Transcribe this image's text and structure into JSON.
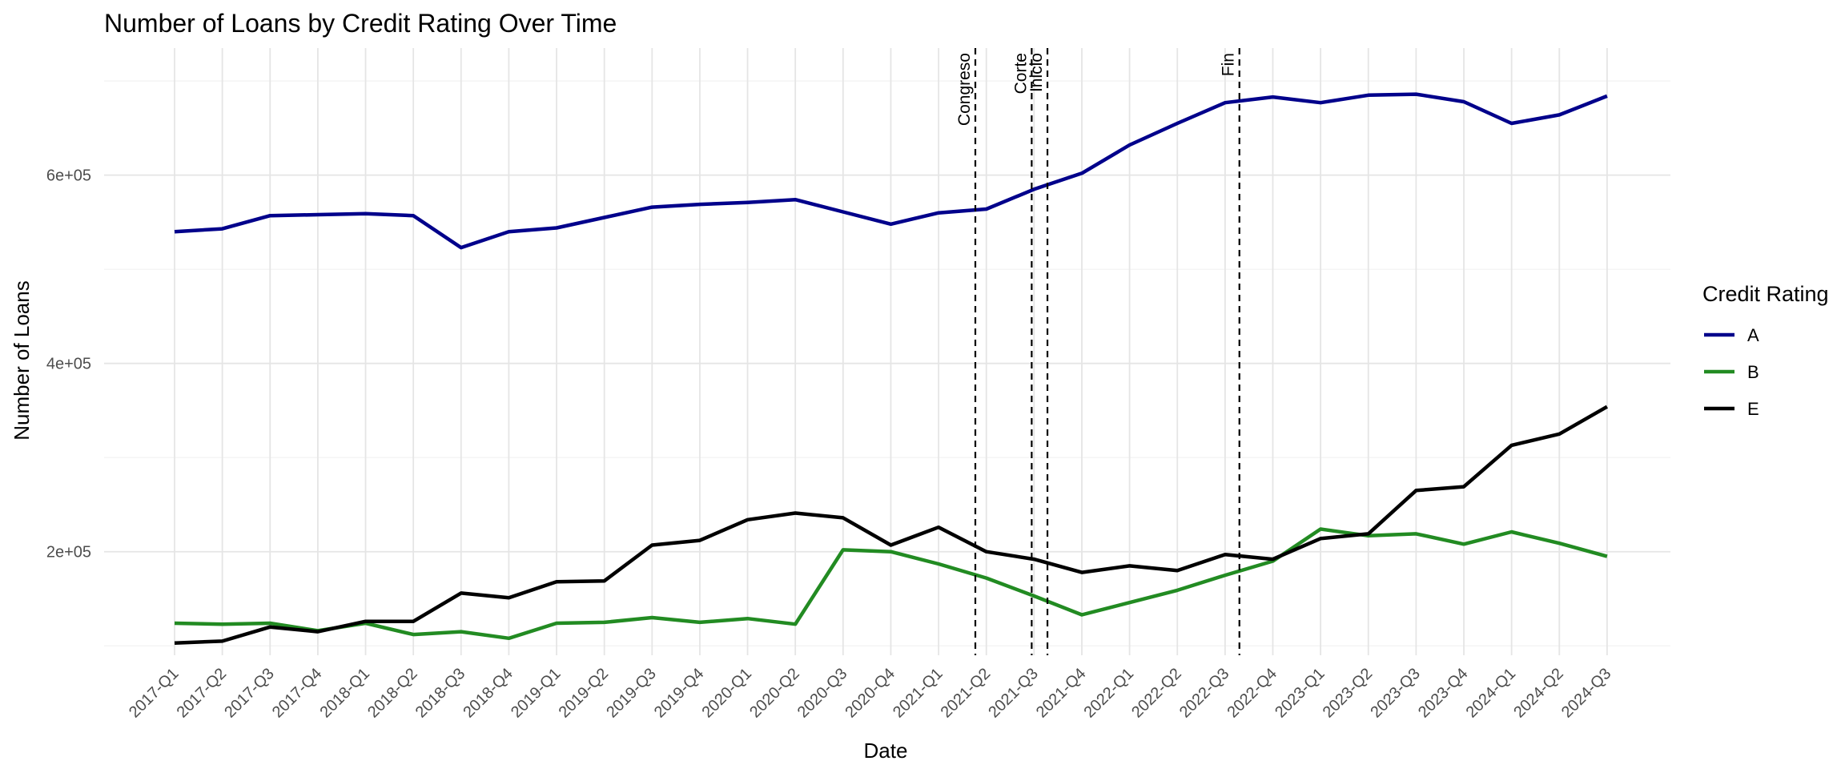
{
  "chart_data": {
    "type": "line",
    "title": "Number of Loans by Credit Rating Over Time",
    "xlabel": "Date",
    "ylabel": "Number of Loans",
    "ylim": [
      90000,
      735000
    ],
    "y_ticks": [
      200000,
      400000,
      600000
    ],
    "y_tick_labels": [
      "2e+05",
      "4e+05",
      "6e+05"
    ],
    "categories": [
      "2017-Q1",
      "2017-Q2",
      "2017-Q3",
      "2017-Q4",
      "2018-Q1",
      "2018-Q2",
      "2018-Q3",
      "2018-Q4",
      "2019-Q1",
      "2019-Q2",
      "2019-Q3",
      "2019-Q4",
      "2020-Q1",
      "2020-Q2",
      "2020-Q3",
      "2020-Q4",
      "2021-Q1",
      "2021-Q2",
      "2021-Q3",
      "2021-Q4",
      "2022-Q1",
      "2022-Q2",
      "2022-Q3",
      "2022-Q4",
      "2023-Q1",
      "2023-Q2",
      "2023-Q3",
      "2023-Q4",
      "2024-Q1",
      "2024-Q2",
      "2024-Q3"
    ],
    "legend": {
      "title": "Credit Rating",
      "position": "right"
    },
    "grid": true,
    "series": [
      {
        "name": "A",
        "color": "#00008b",
        "values": [
          540000,
          543000,
          557000,
          558000,
          559000,
          557000,
          523000,
          540000,
          544000,
          555000,
          566000,
          569000,
          571000,
          574000,
          561000,
          548000,
          560000,
          564000,
          585000,
          602000,
          632000,
          655000,
          677000,
          683000,
          677000,
          685000,
          686000,
          678000,
          655000,
          664000,
          684000
        ]
      },
      {
        "name": "B",
        "color": "#228b22",
        "values": [
          124000,
          123000,
          124000,
          116000,
          124000,
          112000,
          115000,
          108000,
          124000,
          125000,
          130000,
          125000,
          129000,
          123000,
          202000,
          200000,
          187000,
          172000,
          153000,
          133000,
          146000,
          159000,
          175000,
          190000,
          224000,
          217000,
          219000,
          208000,
          221000,
          209000,
          195000
        ]
      },
      {
        "name": "E",
        "color": "#000000",
        "values": [
          103000,
          105000,
          120000,
          115000,
          126000,
          126000,
          156000,
          151000,
          168000,
          169000,
          207000,
          212000,
          234000,
          241000,
          236000,
          207000,
          226000,
          200000,
          192000,
          178000,
          185000,
          180000,
          197000,
          192000,
          214000,
          219000,
          265000,
          269000,
          313000,
          325000,
          354000
        ]
      }
    ],
    "vlines": [
      {
        "label": "Congreso",
        "x": 16.77
      },
      {
        "label": "Corte",
        "x": 17.95
      },
      {
        "label": "Inicio",
        "x": 18.28
      },
      {
        "label": "Fin",
        "x": 22.3
      }
    ]
  }
}
